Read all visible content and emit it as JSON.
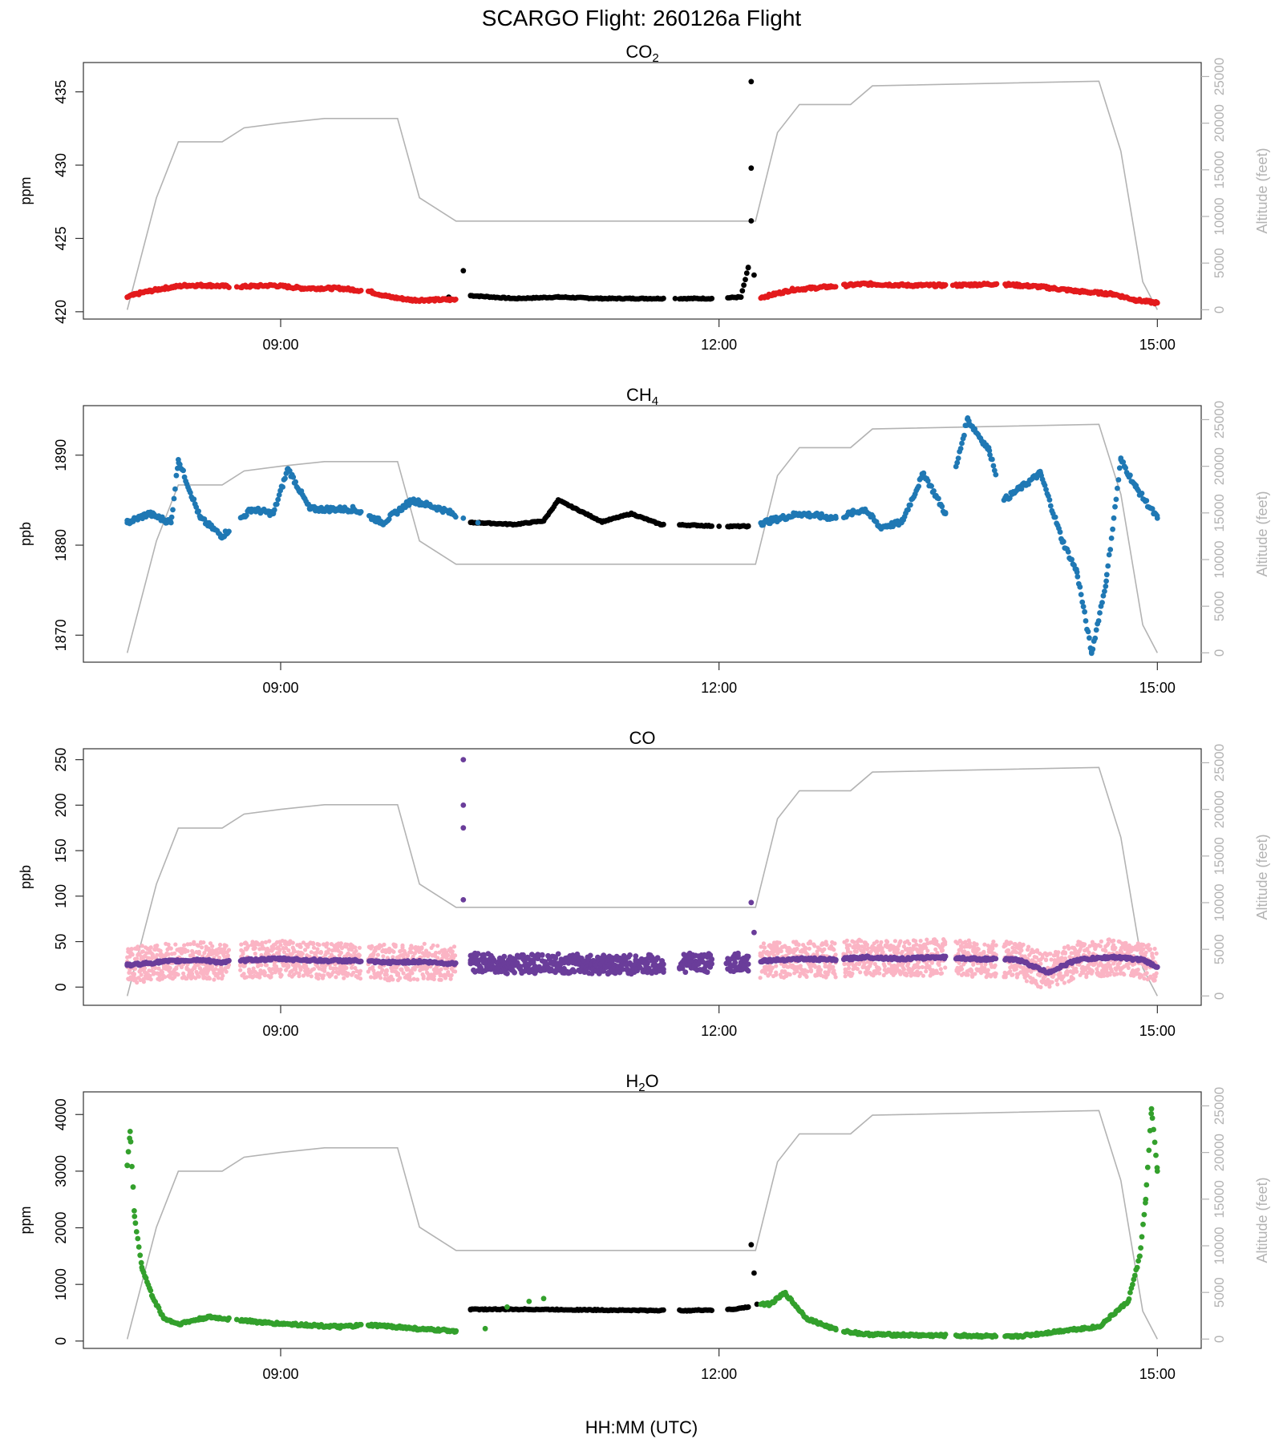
{
  "figure": {
    "title": "SCARGO Flight: 260126a  Flight",
    "xlabel": "HH:MM (UTC)"
  },
  "chart_data": [
    {
      "type": "scatter",
      "title": "CO",
      "title_sub": "2",
      "ylabel": "ppm",
      "y2label": "Altitude (feet)",
      "ylim": [
        419.5,
        437
      ],
      "yticks": [
        420,
        425,
        430,
        435
      ],
      "y2ticks": [
        0,
        5000,
        10000,
        15000,
        20000,
        25000
      ],
      "xlim": [
        7.65,
        15.3
      ],
      "xticks": [
        9,
        12,
        15
      ],
      "xtick_labels": [
        "09:00",
        "12:00",
        "15:00"
      ],
      "colors": {
        "flight": "#e31a1c",
        "ground": "#000000",
        "altitude": "#b3b3b3"
      },
      "flight_series": [
        [
          7.95,
          421.0
        ],
        [
          8.05,
          421.3
        ],
        [
          8.2,
          421.6
        ],
        [
          8.35,
          421.8
        ],
        [
          8.5,
          421.8
        ],
        [
          8.7,
          421.7
        ],
        [
          8.95,
          421.8
        ],
        [
          9.15,
          421.6
        ],
        [
          9.4,
          421.6
        ],
        [
          9.6,
          421.4
        ],
        [
          9.75,
          421.0
        ],
        [
          9.9,
          420.8
        ],
        [
          12.3,
          421.0
        ],
        [
          12.5,
          421.5
        ],
        [
          12.75,
          421.7
        ],
        [
          13.0,
          421.9
        ],
        [
          13.3,
          421.8
        ],
        [
          13.6,
          421.8
        ],
        [
          13.9,
          421.9
        ],
        [
          14.2,
          421.7
        ],
        [
          14.45,
          421.4
        ],
        [
          14.7,
          421.2
        ],
        [
          14.85,
          420.8
        ],
        [
          15.0,
          420.6
        ]
      ],
      "ground_series": [
        [
          10.15,
          421.0
        ],
        [
          10.25,
          422.8
        ],
        [
          10.3,
          421.1
        ],
        [
          10.6,
          420.9
        ],
        [
          10.9,
          421.0
        ],
        [
          11.2,
          420.9
        ],
        [
          11.5,
          420.9
        ],
        [
          11.7,
          420.9
        ],
        [
          11.95,
          420.9
        ],
        [
          12.15,
          421.0
        ],
        [
          12.2,
          423.0
        ],
        [
          12.22,
          435.7
        ],
        [
          12.22,
          429.8
        ],
        [
          12.22,
          426.2
        ],
        [
          12.24,
          422.5
        ]
      ],
      "altitude": [
        [
          7.95,
          0
        ],
        [
          8.15,
          12000
        ],
        [
          8.3,
          18000
        ],
        [
          8.6,
          18000
        ],
        [
          8.75,
          19500
        ],
        [
          9.0,
          20000
        ],
        [
          9.3,
          20500
        ],
        [
          9.8,
          20500
        ],
        [
          9.95,
          12000
        ],
        [
          10.2,
          9500
        ],
        [
          12.25,
          9500
        ],
        [
          12.4,
          19000
        ],
        [
          12.55,
          22000
        ],
        [
          12.9,
          22000
        ],
        [
          13.05,
          24000
        ],
        [
          14.6,
          24500
        ],
        [
          14.75,
          17000
        ],
        [
          14.9,
          3000
        ],
        [
          15.0,
          0
        ]
      ]
    },
    {
      "type": "scatter",
      "title": "CH",
      "title_sub": "4",
      "ylabel": "ppb",
      "y2label": "Altitude (feet)",
      "ylim": [
        1867,
        1895.5
      ],
      "yticks": [
        1870,
        1880,
        1890
      ],
      "y2ticks": [
        0,
        5000,
        10000,
        15000,
        20000,
        25000
      ],
      "xlim": [
        7.65,
        15.3
      ],
      "xticks": [
        9,
        12,
        15
      ],
      "xtick_labels": [
        "09:00",
        "12:00",
        "15:00"
      ],
      "colors": {
        "flight": "#1f78b4",
        "ground": "#000000",
        "altitude": "#b3b3b3"
      },
      "flight_series": [
        [
          7.95,
          1882.5
        ],
        [
          8.1,
          1883.5
        ],
        [
          8.25,
          1882.5
        ],
        [
          8.3,
          1889.5
        ],
        [
          8.45,
          1883.0
        ],
        [
          8.6,
          1881.0
        ],
        [
          8.8,
          1884.0
        ],
        [
          8.95,
          1883.5
        ],
        [
          9.05,
          1888.5
        ],
        [
          9.2,
          1884.0
        ],
        [
          9.5,
          1884.0
        ],
        [
          9.7,
          1882.5
        ],
        [
          9.9,
          1885.0
        ],
        [
          10.1,
          1884.0
        ],
        [
          10.25,
          1883.0
        ],
        [
          10.35,
          1882.5
        ],
        [
          12.3,
          1882.5
        ],
        [
          12.55,
          1883.5
        ],
        [
          12.8,
          1883.0
        ],
        [
          13.0,
          1884.0
        ],
        [
          13.1,
          1882.0
        ],
        [
          13.25,
          1882.5
        ],
        [
          13.4,
          1888.0
        ],
        [
          13.55,
          1883.5
        ],
        [
          13.7,
          1894.0
        ],
        [
          13.85,
          1890.5
        ],
        [
          13.95,
          1885.0
        ],
        [
          14.2,
          1888.0
        ],
        [
          14.35,
          1880.5
        ],
        [
          14.45,
          1877.0
        ],
        [
          14.55,
          1868.0
        ],
        [
          14.65,
          1876.0
        ],
        [
          14.75,
          1889.5
        ],
        [
          14.85,
          1886.5
        ],
        [
          15.0,
          1883.0
        ]
      ],
      "ground_series": [
        [
          10.35,
          1882.5
        ],
        [
          10.6,
          1882.3
        ],
        [
          10.8,
          1882.7
        ],
        [
          10.9,
          1885.0
        ],
        [
          11.2,
          1882.6
        ],
        [
          11.4,
          1883.5
        ],
        [
          11.6,
          1882.3
        ],
        [
          11.85,
          1882.2
        ],
        [
          12.0,
          1882.1
        ],
        [
          12.2,
          1882.1
        ]
      ],
      "altitude": [
        [
          7.95,
          0
        ],
        [
          8.15,
          12000
        ],
        [
          8.3,
          18000
        ],
        [
          8.6,
          18000
        ],
        [
          8.75,
          19500
        ],
        [
          9.0,
          20000
        ],
        [
          9.3,
          20500
        ],
        [
          9.8,
          20500
        ],
        [
          9.95,
          12000
        ],
        [
          10.2,
          9500
        ],
        [
          12.25,
          9500
        ],
        [
          12.4,
          19000
        ],
        [
          12.55,
          22000
        ],
        [
          12.9,
          22000
        ],
        [
          13.05,
          24000
        ],
        [
          14.6,
          24500
        ],
        [
          14.75,
          17000
        ],
        [
          14.9,
          3000
        ],
        [
          15.0,
          0
        ]
      ]
    },
    {
      "type": "scatter",
      "title": "CO",
      "title_sub": "",
      "ylabel": "ppb",
      "y2label": "Altitude (feet)",
      "ylim": [
        -20,
        262
      ],
      "yticks": [
        0,
        50,
        100,
        150,
        200,
        250
      ],
      "y2ticks": [
        0,
        5000,
        10000,
        15000,
        20000,
        25000
      ],
      "xlim": [
        7.65,
        15.3
      ],
      "xticks": [
        9,
        12,
        15
      ],
      "xtick_labels": [
        "09:00",
        "12:00",
        "15:00"
      ],
      "colors": {
        "flight": "#6a3d9a",
        "flight_raw": "#fbb4c4",
        "ground": "#6a3d9a",
        "altitude": "#b3b3b3"
      },
      "flight_series": [
        [
          7.95,
          24
        ],
        [
          8.2,
          28
        ],
        [
          8.45,
          30
        ],
        [
          8.6,
          27
        ],
        [
          8.8,
          30
        ],
        [
          9.0,
          31
        ],
        [
          9.3,
          29
        ],
        [
          9.5,
          29
        ],
        [
          9.7,
          27
        ],
        [
          9.95,
          28
        ],
        [
          10.15,
          26
        ],
        [
          12.3,
          29
        ],
        [
          12.55,
          31
        ],
        [
          12.8,
          30
        ],
        [
          13.0,
          33
        ],
        [
          13.25,
          31
        ],
        [
          13.5,
          33
        ],
        [
          13.75,
          31
        ],
        [
          14.05,
          30
        ],
        [
          14.25,
          16
        ],
        [
          14.45,
          30
        ],
        [
          14.7,
          33
        ],
        [
          14.9,
          30
        ],
        [
          15.0,
          22
        ]
      ],
      "ground_series": [
        [
          10.25,
          96
        ],
        [
          10.25,
          200
        ],
        [
          10.25,
          175
        ],
        [
          10.25,
          250
        ],
        [
          10.3,
          27
        ],
        [
          10.6,
          25
        ],
        [
          10.9,
          26
        ],
        [
          11.2,
          25
        ],
        [
          11.5,
          25
        ],
        [
          11.8,
          27
        ],
        [
          12.05,
          26
        ],
        [
          12.15,
          27
        ],
        [
          12.22,
          93
        ],
        [
          12.24,
          60
        ]
      ],
      "altitude": [
        [
          7.95,
          0
        ],
        [
          8.15,
          12000
        ],
        [
          8.3,
          18000
        ],
        [
          8.6,
          18000
        ],
        [
          8.75,
          19500
        ],
        [
          9.0,
          20000
        ],
        [
          9.3,
          20500
        ],
        [
          9.8,
          20500
        ],
        [
          9.95,
          12000
        ],
        [
          10.2,
          9500
        ],
        [
          12.25,
          9500
        ],
        [
          12.4,
          19000
        ],
        [
          12.55,
          22000
        ],
        [
          12.9,
          22000
        ],
        [
          13.05,
          24000
        ],
        [
          14.6,
          24500
        ],
        [
          14.75,
          17000
        ],
        [
          14.9,
          3000
        ],
        [
          15.0,
          0
        ]
      ]
    },
    {
      "type": "scatter",
      "title": "H",
      "title_sub": "2",
      "title_tail": "O",
      "ylabel": "ppm",
      "y2label": "Altitude (feet)",
      "ylim": [
        -130,
        4400
      ],
      "yticks": [
        0,
        1000,
        2000,
        3000,
        4000
      ],
      "y2ticks": [
        0,
        5000,
        10000,
        15000,
        20000,
        25000
      ],
      "xlim": [
        7.65,
        15.3
      ],
      "xticks": [
        9,
        12,
        15
      ],
      "xtick_labels": [
        "09:00",
        "12:00",
        "15:00"
      ],
      "colors": {
        "flight": "#33a02c",
        "ground": "#000000",
        "altitude": "#b3b3b3"
      },
      "flight_series": [
        [
          7.95,
          3100
        ],
        [
          7.97,
          3700
        ],
        [
          8.0,
          2200
        ],
        [
          8.05,
          1300
        ],
        [
          8.12,
          800
        ],
        [
          8.2,
          400
        ],
        [
          8.3,
          300
        ],
        [
          8.5,
          420
        ],
        [
          8.7,
          380
        ],
        [
          8.9,
          320
        ],
        [
          9.2,
          280
        ],
        [
          9.4,
          250
        ],
        [
          9.6,
          280
        ],
        [
          9.8,
          250
        ],
        [
          10.0,
          200
        ],
        [
          10.2,
          180
        ],
        [
          10.4,
          220
        ],
        [
          10.55,
          600
        ],
        [
          10.7,
          700
        ],
        [
          10.8,
          750
        ],
        [
          12.35,
          650
        ],
        [
          12.45,
          850
        ],
        [
          12.6,
          400
        ],
        [
          12.8,
          200
        ],
        [
          13.0,
          120
        ],
        [
          13.4,
          100
        ],
        [
          13.8,
          90
        ],
        [
          14.0,
          70
        ],
        [
          14.2,
          130
        ],
        [
          14.4,
          200
        ],
        [
          14.6,
          250
        ],
        [
          14.8,
          700
        ],
        [
          14.88,
          1500
        ],
        [
          14.92,
          2500
        ],
        [
          14.96,
          4100
        ],
        [
          15.0,
          3000
        ]
      ],
      "ground_series": [
        [
          10.3,
          560
        ],
        [
          10.7,
          560
        ],
        [
          11.1,
          550
        ],
        [
          11.5,
          540
        ],
        [
          11.8,
          540
        ],
        [
          12.1,
          560
        ],
        [
          12.2,
          600
        ],
        [
          12.22,
          1700
        ],
        [
          12.24,
          1200
        ],
        [
          12.26,
          650
        ]
      ],
      "altitude": [
        [
          7.95,
          0
        ],
        [
          8.15,
          12000
        ],
        [
          8.3,
          18000
        ],
        [
          8.6,
          18000
        ],
        [
          8.75,
          19500
        ],
        [
          9.0,
          20000
        ],
        [
          9.3,
          20500
        ],
        [
          9.8,
          20500
        ],
        [
          9.95,
          12000
        ],
        [
          10.2,
          9500
        ],
        [
          12.25,
          9500
        ],
        [
          12.4,
          19000
        ],
        [
          12.55,
          22000
        ],
        [
          12.9,
          22000
        ],
        [
          13.05,
          24000
        ],
        [
          14.6,
          24500
        ],
        [
          14.75,
          17000
        ],
        [
          14.9,
          3000
        ],
        [
          15.0,
          0
        ]
      ]
    }
  ]
}
